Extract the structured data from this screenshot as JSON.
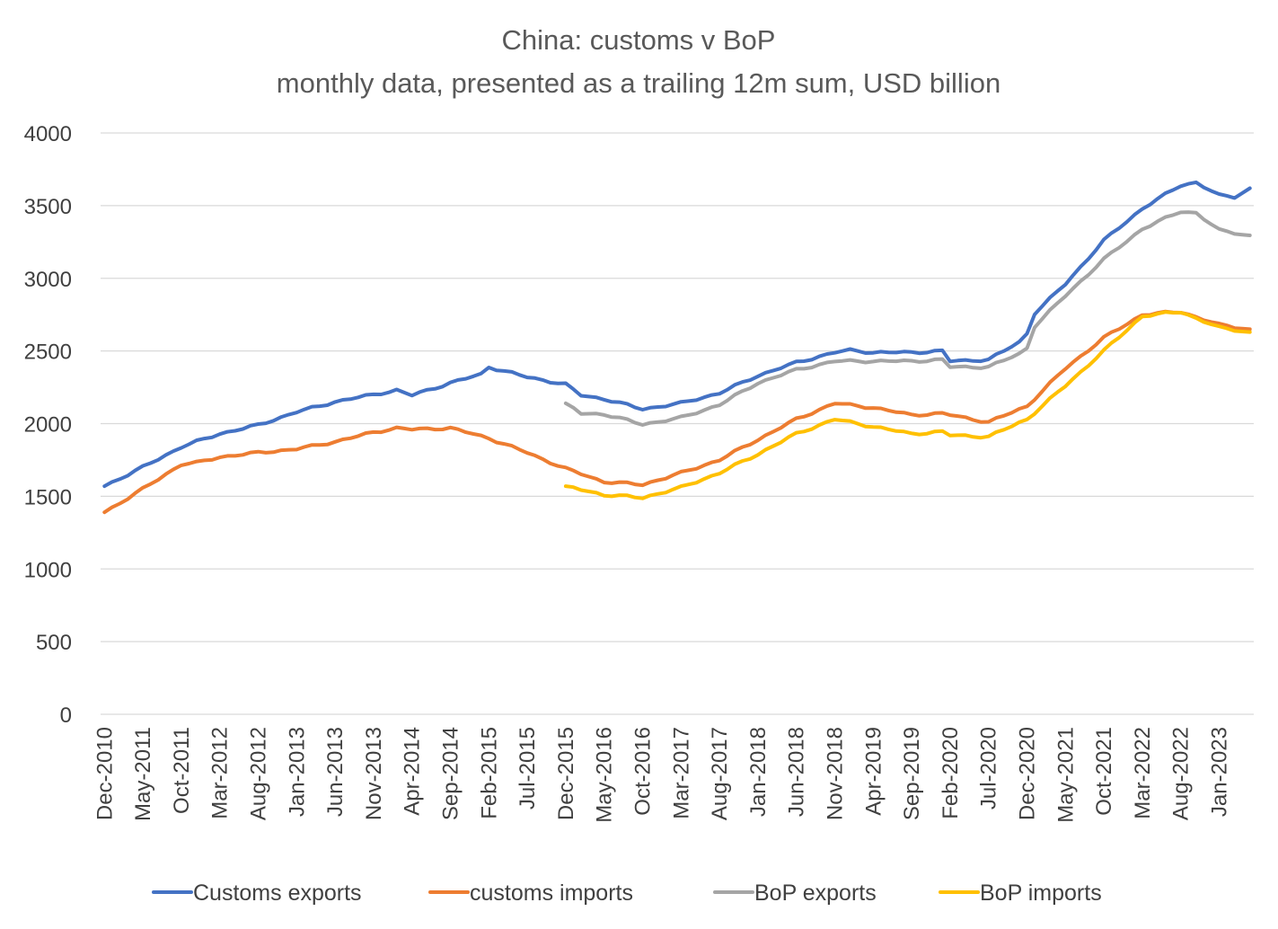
{
  "chart_data": {
    "type": "line",
    "title": "China: customs v BoP",
    "subtitle": "monthly data, presented as a trailing 12m sum, USD billion",
    "xlabel": "",
    "ylabel": "",
    "ylim": [
      0,
      4000
    ],
    "yticks": [
      0,
      500,
      1000,
      1500,
      2000,
      2500,
      3000,
      3500,
      4000
    ],
    "grid": true,
    "legend_position": "bottom",
    "x_start": "Dec-2010",
    "x_end": "May-2023",
    "x_tick_labels": [
      "Dec-2010",
      "May-2011",
      "Oct-2011",
      "Mar-2012",
      "Aug-2012",
      "Jan-2013",
      "Jun-2013",
      "Nov-2013",
      "Apr-2014",
      "Sep-2014",
      "Feb-2015",
      "Jul-2015",
      "Dec-2015",
      "May-2016",
      "Oct-2016",
      "Mar-2017",
      "Aug-2017",
      "Jan-2018",
      "Jun-2018",
      "Nov-2018",
      "Apr-2019",
      "Sep-2019",
      "Feb-2020",
      "Jul-2020",
      "Dec-2020",
      "May-2021",
      "Oct-2021",
      "Mar-2022",
      "Aug-2022",
      "Jan-2023"
    ],
    "series": [
      {
        "name": "Customs exports",
        "color": "#4472c4",
        "start": "Dec-2010",
        "points": [
          [
            "Dec-2010",
            1570
          ],
          [
            "May-2011",
            1700
          ],
          [
            "Oct-2011",
            1840
          ],
          [
            "Mar-2012",
            1930
          ],
          [
            "Aug-2012",
            1990
          ],
          [
            "Jan-2013",
            2080
          ],
          [
            "Jun-2013",
            2150
          ],
          [
            "Nov-2013",
            2200
          ],
          [
            "Feb-2014",
            2230
          ],
          [
            "Apr-2014",
            2195
          ],
          [
            "Sep-2014",
            2280
          ],
          [
            "Jan-2015",
            2340
          ],
          [
            "Feb-2015",
            2390
          ],
          [
            "Jul-2015",
            2320
          ],
          [
            "Dec-2015",
            2270
          ],
          [
            "Feb-2016",
            2195
          ],
          [
            "May-2016",
            2170
          ],
          [
            "Oct-2016",
            2100
          ],
          [
            "Mar-2017",
            2140
          ],
          [
            "Aug-2017",
            2210
          ],
          [
            "Jan-2018",
            2330
          ],
          [
            "Jun-2018",
            2420
          ],
          [
            "Nov-2018",
            2490
          ],
          [
            "Jan-2019",
            2505
          ],
          [
            "Apr-2019",
            2490
          ],
          [
            "Sep-2019",
            2490
          ],
          [
            "Jan-2020",
            2500
          ],
          [
            "Feb-2020",
            2430
          ],
          [
            "Jul-2020",
            2440
          ],
          [
            "Nov-2020",
            2560
          ],
          [
            "Dec-2020",
            2620
          ],
          [
            "Jan-2021",
            2760
          ],
          [
            "May-2021",
            2960
          ],
          [
            "Oct-2021",
            3260
          ],
          [
            "Mar-2022",
            3480
          ],
          [
            "Aug-2022",
            3640
          ],
          [
            "Oct-2022",
            3660
          ],
          [
            "Jan-2023",
            3570
          ],
          [
            "Mar-2023",
            3560
          ],
          [
            "May-2023",
            3620
          ]
        ]
      },
      {
        "name": "customs imports",
        "color": "#ed7d31",
        "start": "Dec-2010",
        "points": [
          [
            "Dec-2010",
            1390
          ],
          [
            "May-2011",
            1550
          ],
          [
            "Oct-2011",
            1720
          ],
          [
            "Dec-2011",
            1730
          ],
          [
            "Mar-2012",
            1770
          ],
          [
            "Aug-2012",
            1800
          ],
          [
            "Jan-2013",
            1825
          ],
          [
            "Jun-2013",
            1875
          ],
          [
            "Nov-2013",
            1940
          ],
          [
            "Feb-2014",
            1970
          ],
          [
            "Apr-2014",
            1960
          ],
          [
            "Sep-2014",
            1970
          ],
          [
            "Feb-2015",
            1900
          ],
          [
            "Jul-2015",
            1800
          ],
          [
            "Dec-2015",
            1690
          ],
          [
            "May-2016",
            1600
          ],
          [
            "Oct-2016",
            1580
          ],
          [
            "Mar-2017",
            1660
          ],
          [
            "Aug-2017",
            1750
          ],
          [
            "Jan-2018",
            1890
          ],
          [
            "Jun-2018",
            2030
          ],
          [
            "Nov-2018",
            2140
          ],
          [
            "Apr-2019",
            2110
          ],
          [
            "Sep-2019",
            2060
          ],
          [
            "Jan-2020",
            2070
          ],
          [
            "Feb-2020",
            2060
          ],
          [
            "Jul-2020",
            2010
          ],
          [
            "Dec-2020",
            2120
          ],
          [
            "May-2021",
            2380
          ],
          [
            "Oct-2021",
            2590
          ],
          [
            "Mar-2022",
            2750
          ],
          [
            "Aug-2022",
            2770
          ],
          [
            "Jan-2023",
            2680
          ],
          [
            "May-2023",
            2650
          ]
        ]
      },
      {
        "name": "BoP exports",
        "color": "#a5a5a5",
        "start": "Dec-2015",
        "points": [
          [
            "Dec-2015",
            2140
          ],
          [
            "Feb-2016",
            2070
          ],
          [
            "May-2016",
            2065
          ],
          [
            "Oct-2016",
            1995
          ],
          [
            "Mar-2017",
            2040
          ],
          [
            "Aug-2017",
            2130
          ],
          [
            "Jan-2018",
            2280
          ],
          [
            "Jun-2018",
            2370
          ],
          [
            "Nov-2018",
            2430
          ],
          [
            "Apr-2019",
            2430
          ],
          [
            "Sep-2019",
            2430
          ],
          [
            "Jan-2020",
            2440
          ],
          [
            "Feb-2020",
            2390
          ],
          [
            "Jul-2020",
            2390
          ],
          [
            "Nov-2020",
            2480
          ],
          [
            "Dec-2020",
            2520
          ],
          [
            "Jan-2021",
            2670
          ],
          [
            "May-2021",
            2880
          ],
          [
            "Oct-2021",
            3130
          ],
          [
            "Mar-2022",
            3340
          ],
          [
            "Aug-2022",
            3460
          ],
          [
            "Oct-2022",
            3450
          ],
          [
            "Jan-2023",
            3330
          ],
          [
            "May-2023",
            3295
          ]
        ]
      },
      {
        "name": "BoP imports",
        "color": "#ffc000",
        "start": "Dec-2015",
        "points": [
          [
            "Dec-2015",
            1570
          ],
          [
            "May-2016",
            1510
          ],
          [
            "Oct-2016",
            1490
          ],
          [
            "Mar-2017",
            1560
          ],
          [
            "Aug-2017",
            1660
          ],
          [
            "Jan-2018",
            1790
          ],
          [
            "Jun-2018",
            1930
          ],
          [
            "Nov-2018",
            2030
          ],
          [
            "Apr-2019",
            1980
          ],
          [
            "Sep-2019",
            1930
          ],
          [
            "Jan-2020",
            1945
          ],
          [
            "Feb-2020",
            1920
          ],
          [
            "Jul-2020",
            1910
          ],
          [
            "Dec-2020",
            2030
          ],
          [
            "May-2021",
            2260
          ],
          [
            "Oct-2021",
            2500
          ],
          [
            "Mar-2022",
            2740
          ],
          [
            "Aug-2022",
            2770
          ],
          [
            "Jan-2023",
            2660
          ],
          [
            "May-2023",
            2630
          ]
        ]
      }
    ]
  }
}
